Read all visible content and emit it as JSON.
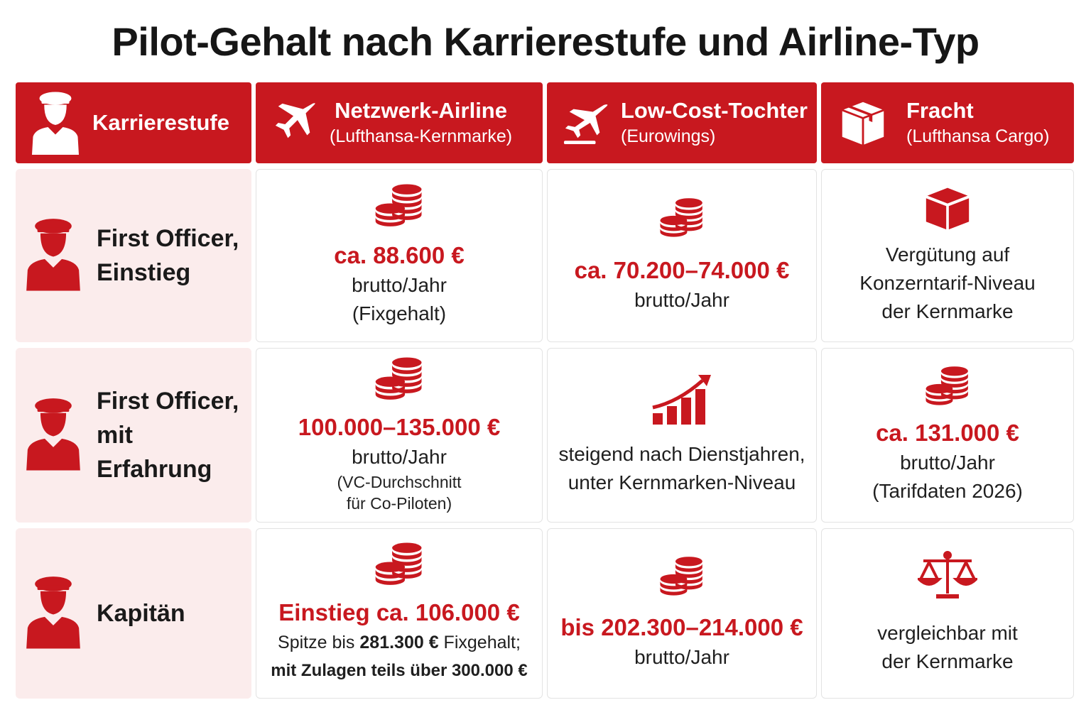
{
  "title": "Pilot-Gehalt nach Karrierestufe und Airline-Typ",
  "colors": {
    "accent": "#c8181f",
    "row_bg": "#fbecec",
    "text": "#1c1c1c"
  },
  "header": {
    "col0": {
      "title": "Karrierestufe",
      "icon": "pilot-icon"
    },
    "col1": {
      "title": "Netzwerk-Airline",
      "sub": "(Lufthansa-Kernmarke)",
      "icon": "airplane-icon"
    },
    "col2": {
      "title": "Low-Cost-Tochter",
      "sub": "(Eurowings)",
      "icon": "airplane-takeoff-icon"
    },
    "col3": {
      "title": "Fracht",
      "sub": "(Lufthansa Cargo)",
      "icon": "package-icon"
    }
  },
  "rows": [
    {
      "label_line1": "First Officer,",
      "label_line2": "Einstieg",
      "c1": {
        "amount": "ca. 88.600 €",
        "line1": "brutto/Jahr",
        "line2": "(Fixgehalt)",
        "icon": "coins-icon"
      },
      "c2": {
        "amount": "ca. 70.200–74.000 €",
        "line1": "brutto/Jahr",
        "icon": "coins-icon"
      },
      "c3": {
        "line1": "Vergütung auf",
        "line2": "Konzerntarif-Niveau",
        "line3": "der Kernmarke",
        "icon": "package-icon"
      }
    },
    {
      "label_line1": "First Officer,",
      "label_line2": "mit Erfahrung",
      "c1": {
        "amount": "100.000–135.000 €",
        "line1": "brutto/Jahr",
        "line2": "(VC-Durchschnitt",
        "line3": "für Co-Piloten)",
        "icon": "coins-icon"
      },
      "c2": {
        "line1": "steigend nach Dienstjahren,",
        "line2": "unter Kernmarken-Niveau",
        "icon": "growth-chart-icon"
      },
      "c3": {
        "amount": "ca. 131.000 €",
        "line1": "brutto/Jahr",
        "line2": "(Tarifdaten 2026)",
        "icon": "coins-icon"
      }
    },
    {
      "label_line1": "Kapitän",
      "c1": {
        "amount": "Einstieg ca. 106.000 €",
        "line1_a": "Spitze bis ",
        "line1_b": "281.300 €",
        "line1_c": " Fixgehalt;",
        "line2": "mit Zulagen teils über 300.000 €",
        "icon": "coins-icon"
      },
      "c2": {
        "amount": "bis 202.300–214.000 €",
        "line1": "brutto/Jahr",
        "icon": "coins-icon"
      },
      "c3": {
        "line1": "vergleichbar mit",
        "line2": "der Kernmarke",
        "icon": "scales-icon"
      }
    }
  ]
}
